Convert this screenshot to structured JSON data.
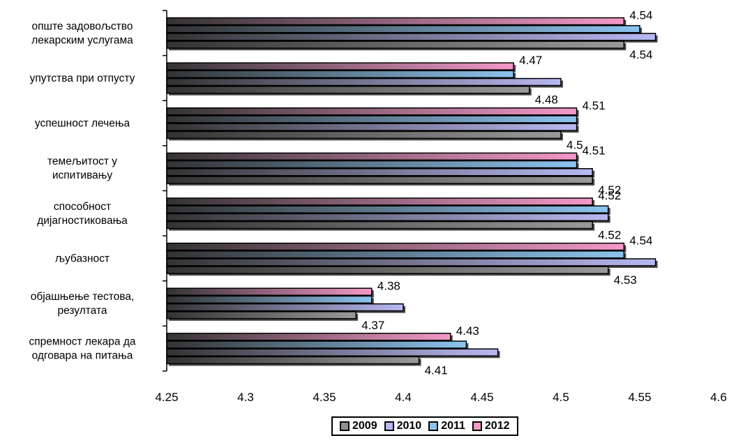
{
  "chart_data": {
    "type": "bar",
    "orientation": "horizontal",
    "categories": [
      [
        "опште задовољство",
        "лекарским услугама"
      ],
      [
        "упутства при отпусту"
      ],
      [
        "успешност лечења"
      ],
      [
        "темељитост у",
        "испитивању"
      ],
      [
        "способност",
        "дијагностиковања"
      ],
      [
        "љубазност"
      ],
      [
        "објашњење тестова,",
        "резултата"
      ],
      [
        "спремност лекара да",
        "одговара на питања"
      ]
    ],
    "series": [
      {
        "name": "2009",
        "color": "#9a9a9a",
        "values": [
          4.54,
          4.48,
          4.5,
          4.52,
          4.52,
          4.53,
          4.37,
          4.41
        ]
      },
      {
        "name": "2010",
        "color": "#b8b8f2",
        "values": [
          4.56,
          4.5,
          4.51,
          4.52,
          4.53,
          4.56,
          4.4,
          4.46
        ]
      },
      {
        "name": "2011",
        "color": "#8cc3ef",
        "values": [
          4.55,
          4.47,
          4.51,
          4.51,
          4.53,
          4.54,
          4.38,
          4.44
        ]
      },
      {
        "name": "2012",
        "color": "#f498c8",
        "values": [
          4.54,
          4.47,
          4.51,
          4.51,
          4.52,
          4.54,
          4.38,
          4.43
        ]
      }
    ],
    "data_labels": [
      {
        "series": "2012",
        "labels": [
          "4.54",
          "4.47",
          "4.51",
          "4.51",
          "4.52",
          "4.54",
          "4.38",
          "4.43"
        ]
      },
      {
        "series": "2009",
        "labels": [
          "4.54",
          "4.48",
          "4.5",
          "4.52",
          "4.52",
          "4.53",
          "4.37",
          "4.41"
        ]
      }
    ],
    "xlim": [
      4.25,
      4.6
    ],
    "xticks": [
      "4.25",
      "4.3",
      "4.35",
      "4.4",
      "4.45",
      "4.5",
      "4.55",
      "4.6"
    ],
    "grid": false,
    "legend_position": "bottom-center",
    "title": "",
    "xlabel": "",
    "ylabel": ""
  }
}
